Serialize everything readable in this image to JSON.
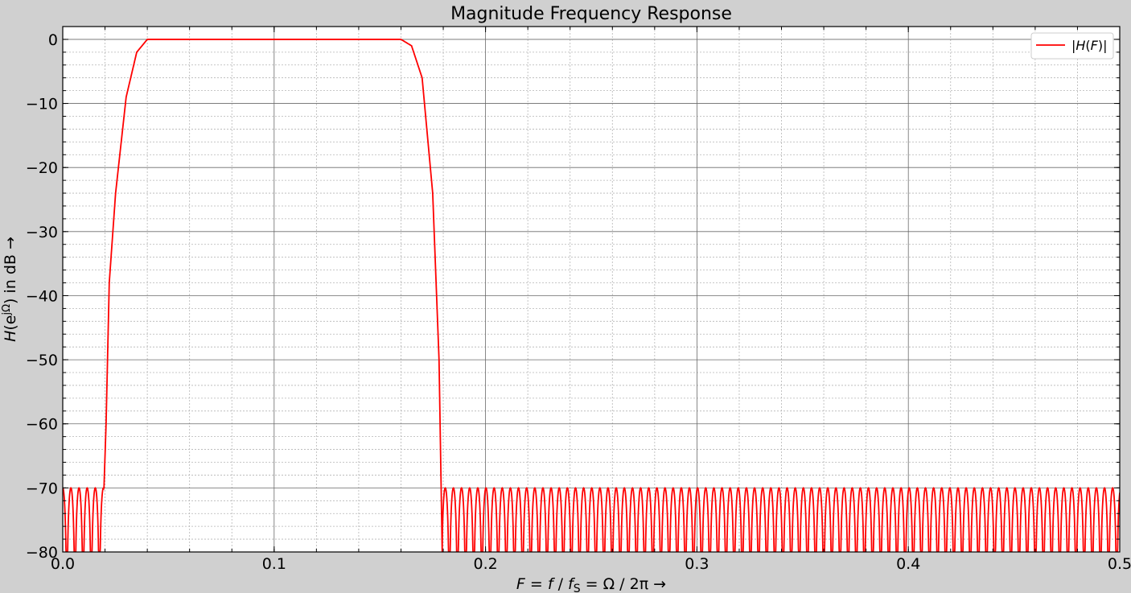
{
  "chart_data": {
    "type": "line",
    "title": "Magnitude Frequency Response",
    "xlabel": "F = f / fS = Ω / 2π →",
    "ylabel": "H(ejΩ) in dB →",
    "xlim": [
      0,
      0.5
    ],
    "ylim": [
      -80,
      2
    ],
    "x_ticks": [
      0.0,
      0.1,
      0.2,
      0.3,
      0.4,
      0.5
    ],
    "x_tick_labels": [
      "0.0",
      "0.1",
      "0.2",
      "0.3",
      "0.4",
      "0.5"
    ],
    "y_ticks": [
      0,
      -10,
      -20,
      -30,
      -40,
      -50,
      -60,
      -70,
      -80
    ],
    "y_tick_labels": [
      "0",
      "−10",
      "−20",
      "−30",
      "−40",
      "−50",
      "−60",
      "−70",
      "−80"
    ],
    "grid": "major and minor",
    "legend": {
      "placement": "top-right",
      "entries": [
        "|H(F)|"
      ]
    },
    "series": [
      {
        "name": "|H(F)|",
        "color": "#ff0000",
        "description_points": {
          "x": [
            0.0,
            0.0195,
            0.0205,
            0.022,
            0.025,
            0.03,
            0.035,
            0.04,
            0.16,
            0.165,
            0.17,
            0.175,
            0.178,
            0.1795,
            0.5
          ],
          "y": [
            -70,
            -70,
            -60,
            -38,
            -24,
            -9,
            -2,
            0,
            0,
            -1,
            -6,
            -24,
            -50,
            -80,
            -70
          ]
        },
        "passband": [
          0.04,
          0.16
        ],
        "stopband_ripple_db": -70,
        "stopband_ripple_period": 0.00385
      }
    ]
  }
}
